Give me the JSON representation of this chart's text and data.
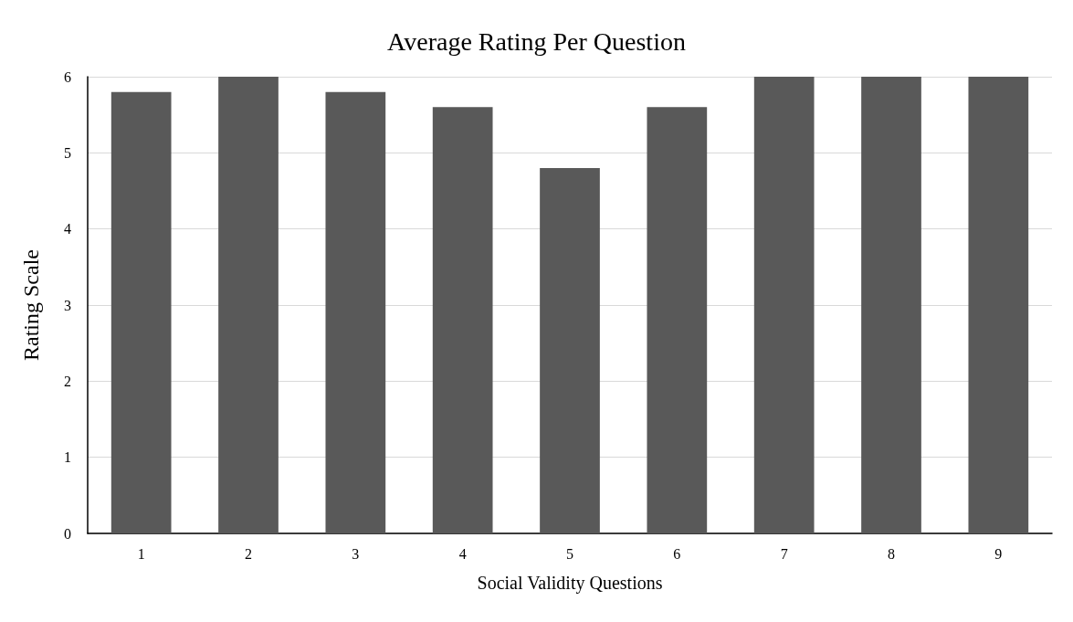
{
  "chart_data": {
    "type": "bar",
    "title": "Average Rating Per Question",
    "xlabel": "Social Validity Questions",
    "ylabel": "Rating Scale",
    "categories": [
      "1",
      "2",
      "3",
      "4",
      "5",
      "6",
      "7",
      "8",
      "9"
    ],
    "values": [
      5.8,
      6,
      5.8,
      5.6,
      4.8,
      5.6,
      6,
      6,
      6
    ],
    "color": "#595959",
    "ylim": [
      0,
      6
    ],
    "yticks": [
      0,
      1,
      2,
      3,
      4,
      5,
      6
    ],
    "grid": "y"
  }
}
